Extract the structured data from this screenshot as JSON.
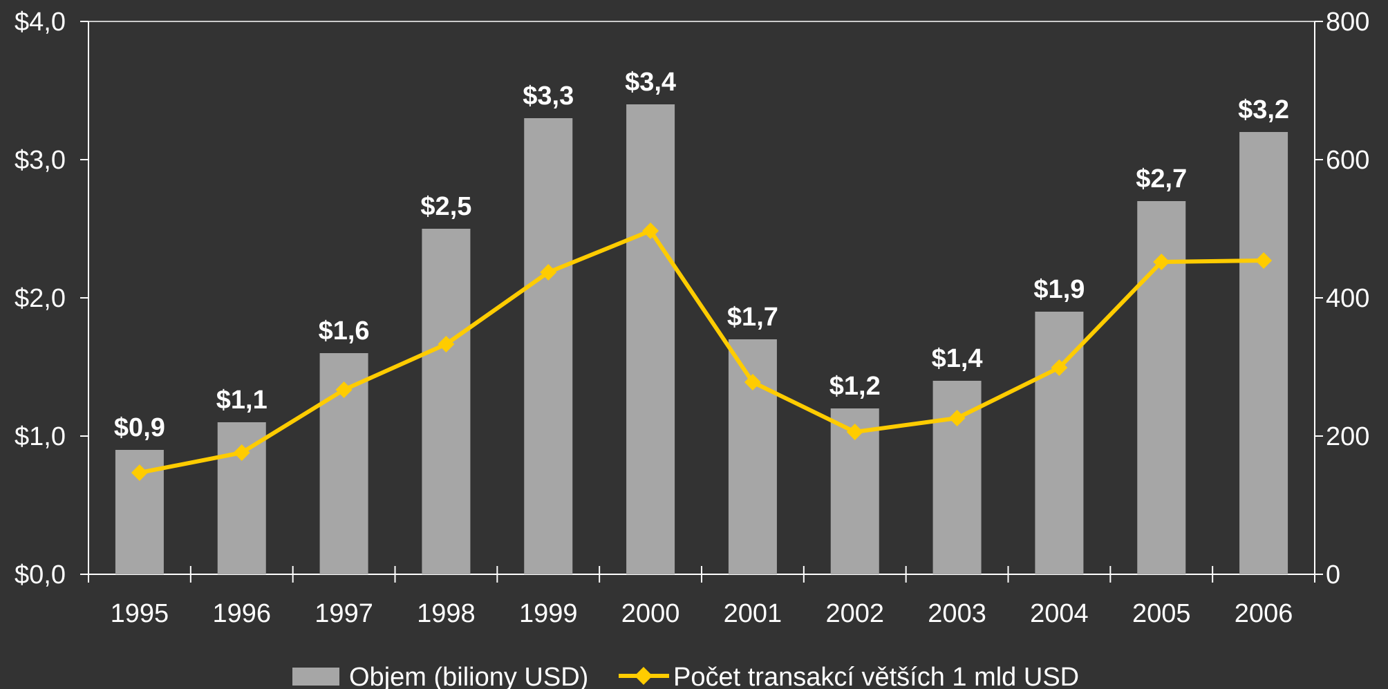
{
  "chart_data": {
    "type": "bar",
    "categories": [
      "1995",
      "1996",
      "1997",
      "1998",
      "1999",
      "2000",
      "2001",
      "2002",
      "2003",
      "2004",
      "2005",
      "2006"
    ],
    "series": [
      {
        "name": "Objem (biliony USD)",
        "type": "bar",
        "axis": "left",
        "color": "#a6a6a6",
        "values": [
          0.9,
          1.1,
          1.6,
          2.5,
          3.3,
          3.4,
          1.7,
          1.2,
          1.4,
          1.9,
          2.7,
          3.2
        ],
        "labels": [
          "$0,9",
          "$1,1",
          "$1,6",
          "$2,5",
          "$3,3",
          "$3,4",
          "$1,7",
          "$1,2",
          "$1,4",
          "$1,9",
          "$2,7",
          "$3,2"
        ]
      },
      {
        "name": "Počet transakcí větších 1 mld USD",
        "type": "line",
        "axis": "right",
        "color": "#ffcc00",
        "marker": "diamond",
        "values": [
          147,
          176,
          267,
          333,
          437,
          497,
          278,
          206,
          226,
          299,
          452,
          454
        ]
      }
    ],
    "y_left": {
      "range": [
        0,
        4
      ],
      "ticks": [
        0,
        1,
        2,
        3,
        4
      ],
      "tick_labels": [
        "$0,0",
        "$1,0",
        "$2,0",
        "$3,0",
        "$4,0"
      ]
    },
    "y_right": {
      "range": [
        0,
        800
      ],
      "ticks": [
        0,
        200,
        400,
        600,
        800
      ],
      "tick_labels": [
        "0",
        "200",
        "400",
        "600",
        "800"
      ]
    },
    "grid": false,
    "legend_position": "bottom",
    "background": "#333333",
    "axis_color": "#ffffff"
  }
}
